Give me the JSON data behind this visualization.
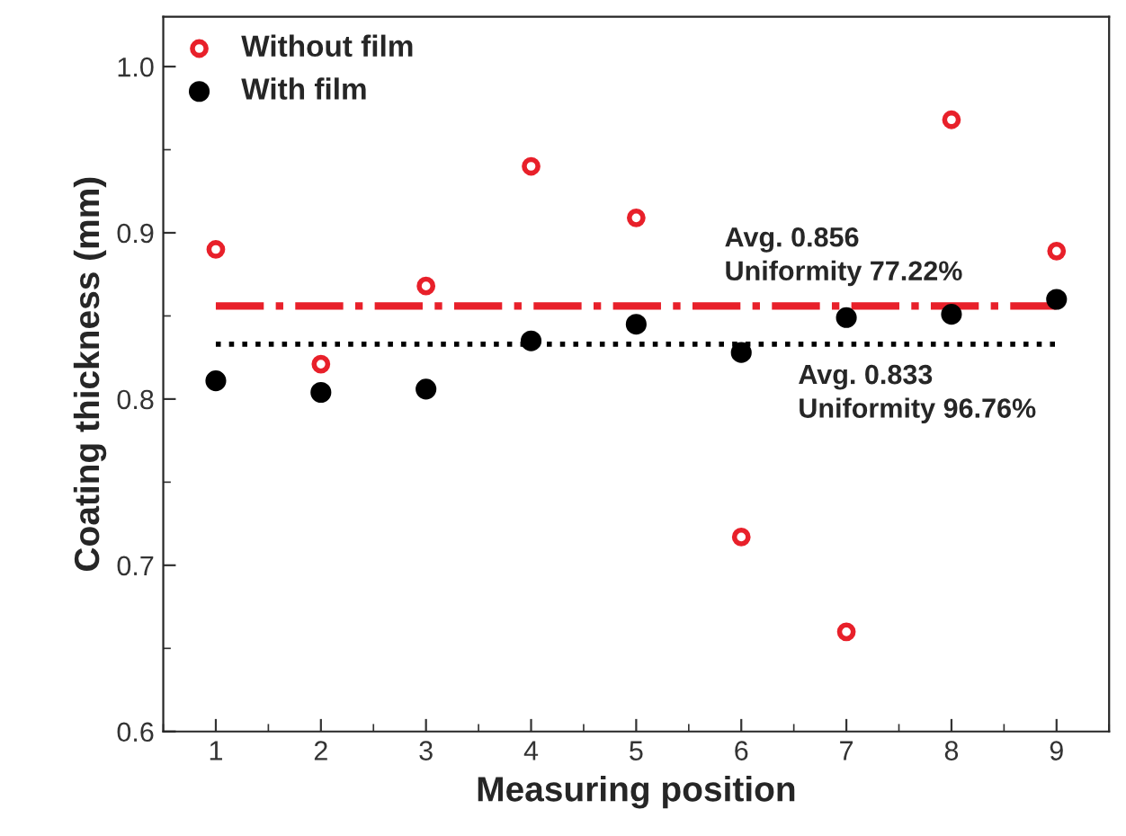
{
  "chart_data": {
    "type": "scatter",
    "xlabel": "Measuring position",
    "ylabel": "Coating thickness (mm)",
    "x": [
      1,
      2,
      3,
      4,
      5,
      6,
      7,
      8,
      9
    ],
    "series": [
      {
        "name": "Without film",
        "color": "#e8202a",
        "marker": "circle",
        "values": [
          0.89,
          0.821,
          0.868,
          0.94,
          0.909,
          0.717,
          0.66,
          0.968,
          0.889
        ]
      },
      {
        "name": "With film",
        "color": "#000000",
        "marker": "circle",
        "values": [
          0.811,
          0.804,
          0.806,
          0.835,
          0.845,
          0.828,
          0.849,
          0.851,
          0.86
        ]
      }
    ],
    "ref_lines": [
      {
        "axis": "y",
        "value": 0.856,
        "color": "#e8202a",
        "line_style": "dashdot"
      },
      {
        "axis": "y",
        "value": 0.833,
        "color": "#000000",
        "line_style": "dotted"
      }
    ],
    "annotations": [
      {
        "text": "Avg. 0.856\nUniformity 77.22%",
        "x": 5.84,
        "y": 0.856
      },
      {
        "text": "Avg. 0.833\nUniformity 96.76%",
        "x": 6.54,
        "y": 0.833
      }
    ],
    "xlim": [
      0.5,
      9.5
    ],
    "ylim": [
      0.6,
      1.03
    ],
    "xticks": [
      1,
      2,
      3,
      4,
      5,
      6,
      7,
      8,
      9
    ],
    "yticks": [
      0.6,
      0.7,
      0.8,
      0.9,
      {
        "value": 1,
        "label": "1.0"
      }
    ],
    "grid": false,
    "legend": "top left"
  }
}
